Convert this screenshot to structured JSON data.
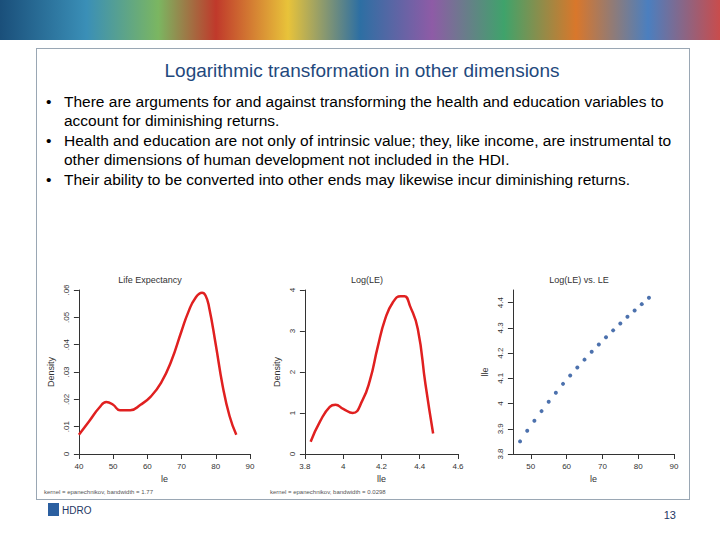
{
  "title": "Logarithmic transformation in other dimensions",
  "bullets": [
    "There are arguments for and against transforming the health and education variables to account for diminishing returns.",
    "Health and education are not only of intrinsic value; they, like income, are instrumental to other dimensions of human development not included in the HDI.",
    "Their ability to be converted into other ends may likewise incur diminishing returns."
  ],
  "footer": {
    "left": "HDRO",
    "right": "13"
  },
  "chart_data": [
    {
      "type": "line",
      "title": "Life Expectancy",
      "xlabel": "le",
      "ylabel": "Density",
      "annotation": "kernel = epanechnikov, bandwidth = 1.77",
      "color": "#e02020",
      "marker": "none",
      "x": [
        40,
        43,
        46,
        48,
        50,
        52,
        55,
        58,
        61,
        64,
        67,
        70,
        72,
        74,
        76,
        77,
        78,
        80,
        82,
        84,
        86
      ],
      "values": [
        0.007,
        0.012,
        0.017,
        0.019,
        0.018,
        0.016,
        0.016,
        0.018,
        0.021,
        0.026,
        0.034,
        0.045,
        0.052,
        0.057,
        0.059,
        0.058,
        0.054,
        0.04,
        0.025,
        0.014,
        0.007
      ],
      "xlim": [
        40,
        90
      ],
      "xticks": [
        40,
        50,
        60,
        70,
        80,
        90
      ],
      "ylim": [
        0,
        0.06
      ],
      "yticks": [
        0,
        {
          "value": 0.01,
          "label": ".01"
        },
        {
          "value": 0.02,
          "label": ".02"
        },
        {
          "value": 0.03,
          "label": ".03"
        },
        {
          "value": 0.04,
          "label": ".04"
        },
        {
          "value": 0.05,
          "label": ".05"
        },
        {
          "value": 0.06,
          "label": ".06"
        }
      ],
      "grid": false
    },
    {
      "type": "line",
      "title": "Log(LE)",
      "xlabel": "lle",
      "ylabel": "Density",
      "annotation": "kernel = epanechnikov, bandwidth = 0.0298",
      "color": "#e02020",
      "marker": "none",
      "x": [
        3.83,
        3.88,
        3.93,
        3.96,
        4.0,
        4.05,
        4.1,
        4.14,
        4.18,
        4.22,
        4.26,
        4.3,
        4.32,
        4.35,
        4.39,
        4.43,
        4.47
      ],
      "values": [
        0.3,
        0.8,
        1.15,
        1.2,
        1.1,
        1.0,
        1.3,
        1.8,
        2.6,
        3.3,
        3.7,
        3.85,
        3.85,
        3.6,
        3.05,
        1.7,
        0.5
      ],
      "xlim": [
        3.8,
        4.6
      ],
      "xticks": [
        3.8,
        4,
        4.2,
        4.4,
        4.6
      ],
      "ylim": [
        0,
        4
      ],
      "yticks": [
        0,
        1,
        2,
        3,
        4
      ],
      "grid": false
    },
    {
      "type": "scatter",
      "title": "Log(LE) vs. LE",
      "xlabel": "le",
      "ylabel": "lle",
      "color": "#1f4e99",
      "marker": "circle",
      "x": [
        47,
        49,
        51,
        53,
        55,
        57,
        59,
        61,
        63,
        65,
        67,
        69,
        71,
        73,
        75,
        77,
        79,
        81,
        83
      ],
      "values": [
        3.85,
        3.892,
        3.932,
        3.97,
        4.007,
        4.043,
        4.078,
        4.111,
        4.143,
        4.174,
        4.205,
        4.234,
        4.263,
        4.29,
        4.317,
        4.344,
        4.369,
        4.394,
        4.419
      ],
      "xlim": [
        45,
        90
      ],
      "xticks": [
        50,
        60,
        70,
        80,
        90
      ],
      "ylim": [
        3.8,
        4.45
      ],
      "yticks": [
        3.8,
        3.9,
        4,
        4.1,
        4.2,
        4.3,
        4.4
      ],
      "grid": false
    }
  ]
}
